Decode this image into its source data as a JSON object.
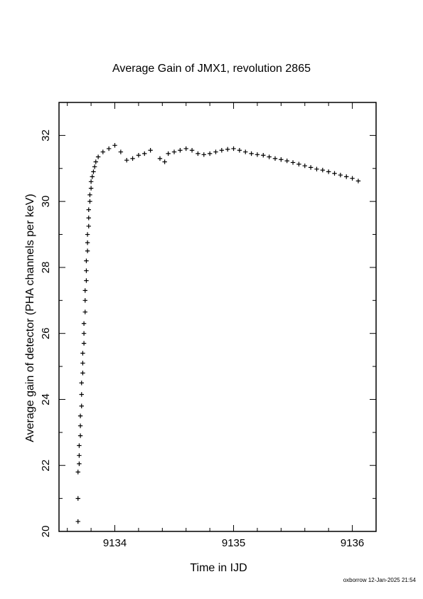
{
  "chart_data": {
    "type": "scatter",
    "title": "Average Gain of JMX1, revolution 2865",
    "xlabel": "Time in IJD",
    "ylabel": "Average gain of detector (PHA channels per keV)",
    "xlim": [
      9133.53,
      9136.2
    ],
    "ylim": [
      20,
      33
    ],
    "xticks": [
      9134,
      9135,
      9136
    ],
    "yticks": [
      20,
      22,
      24,
      26,
      28,
      30,
      32
    ],
    "grid": false,
    "marker": "+",
    "x": [
      9133.69,
      9133.69,
      9133.69,
      9133.7,
      9133.7,
      9133.7,
      9133.71,
      9133.71,
      9133.71,
      9133.72,
      9133.72,
      9133.72,
      9133.73,
      9133.73,
      9133.73,
      9133.74,
      9133.74,
      9133.74,
      9133.75,
      9133.75,
      9133.75,
      9133.76,
      9133.76,
      9133.76,
      9133.77,
      9133.77,
      9133.77,
      9133.78,
      9133.78,
      9133.78,
      9133.79,
      9133.79,
      9133.8,
      9133.8,
      9133.81,
      9133.82,
      9133.83,
      9133.84,
      9133.86,
      9133.9,
      9133.95,
      9134.0,
      9134.05,
      9134.1,
      9134.15,
      9134.2,
      9134.25,
      9134.3,
      9134.38,
      9134.42,
      9134.45,
      9134.5,
      9134.55,
      9134.6,
      9134.65,
      9134.7,
      9134.75,
      9134.8,
      9134.85,
      9134.9,
      9134.95,
      9135.0,
      9135.05,
      9135.1,
      9135.15,
      9135.2,
      9135.25,
      9135.3,
      9135.35,
      9135.4,
      9135.45,
      9135.5,
      9135.55,
      9135.6,
      9135.65,
      9135.7,
      9135.75,
      9135.8,
      9135.85,
      9135.9,
      9135.95,
      9136.0,
      9136.05
    ],
    "y": [
      20.3,
      21.0,
      21.8,
      22.05,
      22.3,
      22.6,
      22.9,
      23.2,
      23.5,
      23.8,
      24.15,
      24.5,
      24.8,
      25.1,
      25.4,
      25.7,
      26.0,
      26.3,
      26.65,
      27.0,
      27.3,
      27.6,
      27.9,
      28.2,
      28.5,
      28.75,
      29.0,
      29.25,
      29.5,
      29.75,
      30.0,
      30.2,
      30.4,
      30.6,
      30.75,
      30.9,
      31.05,
      31.2,
      31.35,
      31.5,
      31.6,
      31.7,
      31.5,
      31.25,
      31.3,
      31.4,
      31.45,
      31.55,
      31.3,
      31.2,
      31.45,
      31.5,
      31.55,
      31.6,
      31.55,
      31.45,
      31.42,
      31.45,
      31.5,
      31.55,
      31.58,
      31.6,
      31.55,
      31.5,
      31.45,
      31.42,
      31.4,
      31.35,
      31.3,
      31.27,
      31.23,
      31.18,
      31.13,
      31.08,
      31.03,
      30.98,
      30.95,
      30.9,
      30.85,
      30.8,
      30.75,
      30.7,
      30.62
    ]
  },
  "footer": "oxborrow 12-Jan-2025 21:54"
}
